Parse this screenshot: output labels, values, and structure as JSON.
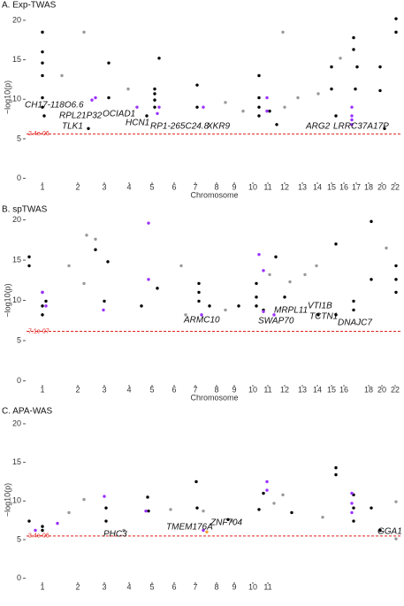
{
  "chart_data": [
    {
      "type": "scatter",
      "title": "A. Exp-TWAS",
      "x_label": "Chromosome",
      "y_label": "−log10(p)",
      "xlim": [
        0,
        425
      ],
      "ylim": [
        -0.5,
        21
      ],
      "xticks": [
        {
          "value": 18,
          "label": "1"
        },
        {
          "value": 58,
          "label": "2"
        },
        {
          "value": 88,
          "label": "3"
        },
        {
          "value": 116,
          "label": "4"
        },
        {
          "value": 142,
          "label": "5"
        },
        {
          "value": 167,
          "label": "6"
        },
        {
          "value": 191,
          "label": "7"
        },
        {
          "value": 215,
          "label": "8"
        },
        {
          "value": 235,
          "label": "9"
        },
        {
          "value": 256,
          "label": "10"
        },
        {
          "value": 273,
          "label": "11"
        },
        {
          "value": 292,
          "label": "12"
        },
        {
          "value": 312,
          "label": "13"
        },
        {
          "value": 329,
          "label": "14"
        },
        {
          "value": 345,
          "label": "15"
        },
        {
          "value": 359,
          "label": "16"
        },
        {
          "value": 373,
          "label": "17"
        },
        {
          "value": 387,
          "label": "18"
        },
        {
          "value": 402,
          "label": "20"
        },
        {
          "value": 417,
          "label": "22"
        }
      ],
      "yticks": [
        0,
        5,
        10,
        15,
        20
      ],
      "threshold": {
        "value": 5.62,
        "label": "2.4e-06",
        "color": "#e0201a"
      },
      "annotations": [
        "CH17-118O6.6",
        "RPL21P32",
        "TLK1",
        "OCIAD1",
        "HCN1",
        "RP1-265C24.8",
        "XKR9",
        "ARG2",
        "LRRC37A17P"
      ],
      "series": [
        {
          "color": "#000000",
          "x": [
            18,
            18,
            18,
            18,
            18,
            18,
            20,
            93,
            93,
            150,
            145,
            145,
            145,
            145,
            193,
            193,
            263,
            263,
            263,
            263,
            370,
            370,
            374,
            372,
            345,
            345,
            400,
            400,
            418,
            418,
            275,
            283,
            350,
            405,
            136,
            70
          ],
          "values": [
            18.5,
            16.0,
            14.6,
            13.0,
            10.2,
            9.0,
            7.9,
            14.6,
            10.2,
            15.2,
            11.3,
            10.7,
            9.9,
            9.0,
            11.8,
            9.0,
            13.0,
            10.2,
            9.0,
            7.9,
            17.8,
            16.3,
            14.1,
            11.3,
            11.3,
            14.1,
            14.1,
            11.1,
            18.5,
            20.2,
            8.5,
            6.8,
            7.9,
            6.3,
            7.9,
            6.3
          ]
        },
        {
          "color": "#999999",
          "x": [
            65,
            40,
            115,
            225,
            290,
            330,
            355,
            292,
            307,
            245
          ],
          "values": [
            18.5,
            13.0,
            11.3,
            9.6,
            18.5,
            10.7,
            15.2,
            9.0,
            10.2,
            8.5
          ]
        },
        {
          "color": "#9b30ff",
          "x": [
            78,
            74,
            125,
            148,
            150,
            200,
            272,
            272,
            368,
            368,
            368,
            368
          ],
          "values": [
            10.2,
            9.9,
            9.0,
            8.2,
            9.0,
            9.0,
            10.2,
            8.5,
            9.0,
            7.9,
            6.8,
            7.4
          ]
        }
      ]
    },
    {
      "type": "scatter",
      "title": "B. spTWAS",
      "x_label": "Chromosome",
      "y_label": "−log10(p)",
      "xlim": [
        0,
        425
      ],
      "ylim": [
        -0.5,
        20.5
      ],
      "xticks": [
        {
          "value": 18,
          "label": "1"
        },
        {
          "value": 58,
          "label": "2"
        },
        {
          "value": 88,
          "label": "3"
        },
        {
          "value": 116,
          "label": "4"
        },
        {
          "value": 142,
          "label": "5"
        },
        {
          "value": 167,
          "label": "6"
        },
        {
          "value": 191,
          "label": "7"
        },
        {
          "value": 215,
          "label": "8"
        },
        {
          "value": 235,
          "label": "9"
        },
        {
          "value": 256,
          "label": "10"
        },
        {
          "value": 273,
          "label": "11"
        },
        {
          "value": 292,
          "label": "12"
        },
        {
          "value": 312,
          "label": "13"
        },
        {
          "value": 329,
          "label": "14"
        },
        {
          "value": 345,
          "label": "15"
        },
        {
          "value": 359,
          "label": "16"
        },
        {
          "value": 387,
          "label": "18"
        },
        {
          "value": 402,
          "label": "20"
        },
        {
          "value": 417,
          "label": "22"
        }
      ],
      "yticks": [
        0,
        5,
        10,
        15,
        20
      ],
      "threshold": {
        "value": 6.15,
        "label": "7.1e-07",
        "color": "#e0201a"
      },
      "annotations": [
        "ARMC10",
        "MRPL11",
        "SWAP70",
        "VTI1B",
        "TCTN1",
        "DNAJC7"
      ],
      "series": [
        {
          "color": "#000000",
          "x": [
            3,
            3,
            18,
            18,
            18,
            22,
            78,
            92,
            88,
            130,
            148,
            195,
            195,
            195,
            207,
            260,
            260,
            260,
            268,
            282,
            292,
            350,
            350,
            370,
            370,
            390,
            390,
            418,
            418,
            418,
            240,
            330
          ],
          "values": [
            15.4,
            14.3,
            11.0,
            9.3,
            8.2,
            9.9,
            16.3,
            14.8,
            9.9,
            9.3,
            11.5,
            12.1,
            11.0,
            9.9,
            9.3,
            12.1,
            10.4,
            9.3,
            8.8,
            15.4,
            10.4,
            17.0,
            8.2,
            9.9,
            8.8,
            19.8,
            12.6,
            14.3,
            12.6,
            11.0,
            9.3,
            8.2
          ]
        },
        {
          "color": "#999999",
          "x": [
            68,
            78,
            48,
            65,
            175,
            275,
            298,
            315,
            328,
            407,
            225,
            180
          ],
          "values": [
            18.1,
            17.6,
            14.3,
            12.1,
            14.3,
            13.2,
            12.3,
            13.2,
            14.3,
            16.5,
            8.8,
            8.2
          ]
        },
        {
          "color": "#9b30ff",
          "x": [
            18,
            22,
            138,
            138,
            87,
            198,
            263,
            268,
            268,
            280
          ],
          "values": [
            11.0,
            9.3,
            19.6,
            12.6,
            8.8,
            8.2,
            15.7,
            13.7,
            8.6,
            8.2
          ]
        }
      ]
    },
    {
      "type": "scatter",
      "title": "C. APA-WAS",
      "y_label": "−log10(p)",
      "xlim": [
        0,
        425
      ],
      "ylim": [
        -0.5,
        20.8
      ],
      "xticks": [
        {
          "value": 18,
          "label": "1"
        },
        {
          "value": 58,
          "label": "2"
        },
        {
          "value": 88,
          "label": "3"
        },
        {
          "value": 116,
          "label": "4"
        },
        {
          "value": 142,
          "label": "5"
        },
        {
          "value": 167,
          "label": "6"
        },
        {
          "value": 191,
          "label": "7"
        },
        {
          "value": 215,
          "label": "8"
        },
        {
          "value": 235,
          "label": "9"
        },
        {
          "value": 256,
          "label": "10"
        },
        {
          "value": 273,
          "label": "11"
        }
      ],
      "yticks": [
        0,
        5,
        10,
        15,
        20
      ],
      "threshold": {
        "value": 5.47,
        "label": "3.4e-06",
        "color": "#e0201a"
      },
      "annotations": [
        "PHC3",
        "TMEM176A",
        "ZNF704",
        "GGA1"
      ],
      "series": [
        {
          "color": "#000000",
          "x": [
            3,
            18,
            18,
            90,
            90,
            137,
            138,
            192,
            193,
            263,
            268,
            350,
            350,
            370,
            370,
            370,
            390,
            400,
            300,
            228
          ],
          "values": [
            7.4,
            6.2,
            6.7,
            9.1,
            7.4,
            10.5,
            8.7,
            12.5,
            9.1,
            8.9,
            11.0,
            14.3,
            13.4,
            10.8,
            9.1,
            7.4,
            9.1,
            6.2,
            8.5,
            7.6
          ]
        },
        {
          "color": "#999999",
          "x": [
            65,
            48,
            110,
            163,
            200,
            232,
            280,
            290,
            335,
            418,
            418
          ],
          "values": [
            10.2,
            8.5,
            6.2,
            8.9,
            8.7,
            7.4,
            9.7,
            10.8,
            7.9,
            9.9,
            5.1
          ]
        },
        {
          "color": "#9b30ff",
          "x": [
            10,
            35,
            88,
            135,
            200,
            272,
            272,
            368,
            368,
            368
          ],
          "values": [
            6.2,
            7.1,
            10.6,
            8.7,
            6.2,
            12.5,
            11.4,
            11.0,
            9.7,
            8.5
          ]
        },
        {
          "color": "#f0a030",
          "x": [
            204
          ],
          "values": [
            6.0
          ]
        }
      ]
    }
  ]
}
